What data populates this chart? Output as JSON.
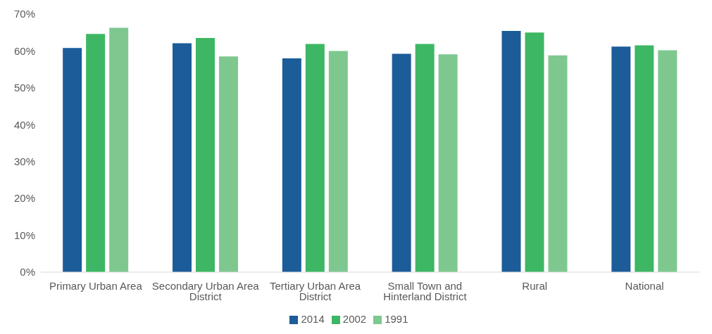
{
  "chart_data": {
    "type": "bar",
    "categories": [
      "Primary Urban Area",
      "Secondary Urban Area District",
      "Tertiary Urban Area District",
      "Small Town and Hinterland District",
      "Rural",
      "National"
    ],
    "series": [
      {
        "name": "2014",
        "color": "#1c5c99",
        "values": [
          60.8,
          62.1,
          58.0,
          59.2,
          65.4,
          61.2
        ]
      },
      {
        "name": "2002",
        "color": "#3db763",
        "values": [
          64.6,
          63.5,
          61.9,
          61.9,
          65.0,
          61.5
        ]
      },
      {
        "name": "1991",
        "color": "#7ec890",
        "values": [
          66.3,
          58.5,
          60.0,
          59.1,
          58.8,
          60.2
        ]
      }
    ],
    "ylim": [
      0,
      70
    ],
    "yticks": [
      {
        "value": 0,
        "label": "0%"
      },
      {
        "value": 10,
        "label": "10%"
      },
      {
        "value": 20,
        "label": "20%"
      },
      {
        "value": 30,
        "label": "30%"
      },
      {
        "value": 40,
        "label": "40%"
      },
      {
        "value": 50,
        "label": "50%"
      },
      {
        "value": 60,
        "label": "60%"
      },
      {
        "value": 70,
        "label": "70%"
      }
    ],
    "grid": false,
    "legend": "bottom"
  }
}
